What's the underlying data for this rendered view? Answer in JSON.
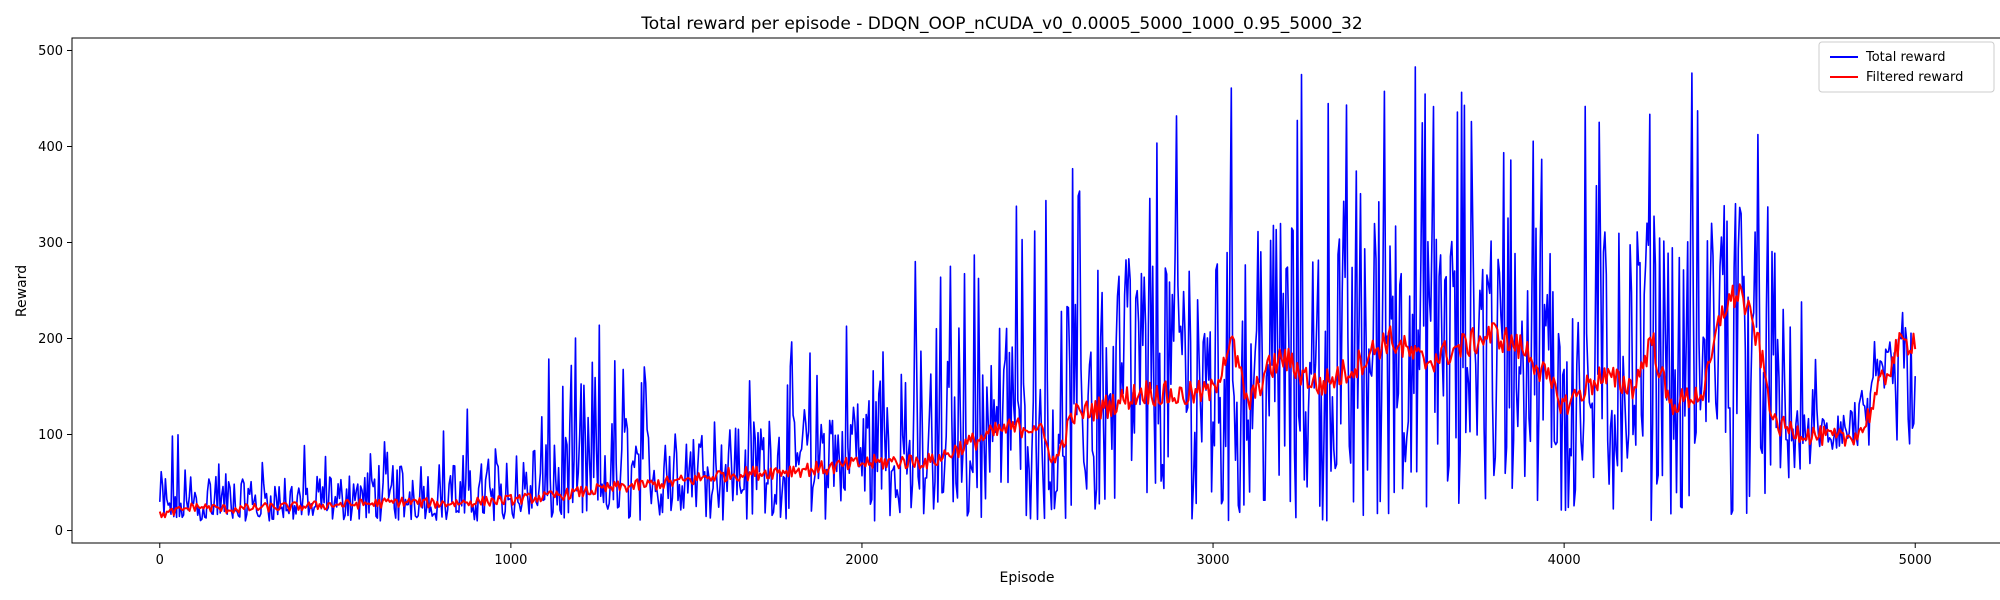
{
  "chart_data": {
    "type": "line",
    "title": "Total reward per episode - DDQN_OOP_nCUDA_v0_0.0005_5000_1000_0.95_5000_32",
    "xlabel": "Episode",
    "ylabel": "Reward",
    "xlim": [
      -250,
      5250
    ],
    "ylim": [
      -13,
      513
    ],
    "xticks": [
      0,
      1000,
      2000,
      3000,
      4000,
      5000
    ],
    "yticks": [
      0,
      100,
      200,
      300,
      400,
      500
    ],
    "grid": false,
    "legend": "top-right",
    "series": [
      {
        "name": "Total reward",
        "color": "#0000ff",
        "style": "noisy per-episode reward",
        "x": [
          0,
          250,
          500,
          750,
          1000,
          1250,
          1500,
          1750,
          2000,
          2250,
          2500,
          2750,
          3000,
          3250,
          3500,
          3750,
          4000,
          4250,
          4500,
          4750,
          5000
        ],
        "min": [
          10,
          10,
          10,
          10,
          10,
          10,
          10,
          10,
          10,
          10,
          10,
          10,
          10,
          10,
          10,
          10,
          10,
          10,
          10,
          80,
          80
        ],
        "max": [
          117,
          90,
          95,
          120,
          140,
          230,
          160,
          190,
          250,
          320,
          370,
          500,
          500,
          500,
          500,
          500,
          500,
          500,
          500,
          130,
          275
        ]
      },
      {
        "name": "Filtered reward",
        "color": "#ff0000",
        "style": "moving average",
        "x": [
          0,
          100,
          200,
          300,
          400,
          500,
          600,
          700,
          800,
          900,
          1000,
          1100,
          1200,
          1300,
          1400,
          1500,
          1600,
          1700,
          1800,
          1900,
          2000,
          2100,
          2200,
          2300,
          2400,
          2500,
          2550,
          2600,
          2700,
          2800,
          2900,
          3000,
          3050,
          3100,
          3150,
          3200,
          3300,
          3400,
          3500,
          3600,
          3700,
          3800,
          3900,
          4000,
          4100,
          4200,
          4250,
          4300,
          4400,
          4450,
          4500,
          4550,
          4600,
          4700,
          4800,
          4850,
          4900,
          4950,
          5000
        ],
        "values": [
          16,
          25,
          22,
          24,
          25,
          27,
          28,
          30,
          28,
          30,
          32,
          35,
          40,
          45,
          48,
          52,
          58,
          60,
          63,
          65,
          70,
          72,
          72,
          90,
          105,
          110,
          70,
          120,
          130,
          145,
          140,
          145,
          200,
          130,
          165,
          180,
          150,
          170,
          200,
          175,
          190,
          205,
          185,
          130,
          160,
          150,
          200,
          130,
          145,
          230,
          250,
          200,
          110,
          100,
          95,
          105,
          150,
          190,
          200
        ]
      }
    ]
  }
}
